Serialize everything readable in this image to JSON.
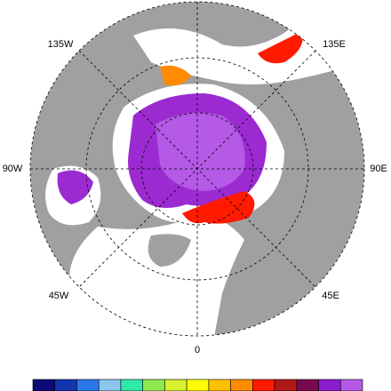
{
  "map": {
    "longitude_labels": [
      "135W",
      "135E",
      "90W",
      "90E",
      "45W",
      "45E",
      "0"
    ]
  },
  "colorbar": {
    "colors": [
      "#0a0a78",
      "#1236b0",
      "#2a78e6",
      "#8ac6f0",
      "#30e8a8",
      "#90e850",
      "#d8f030",
      "#ffff00",
      "#ffc000",
      "#ff8c00",
      "#ff1a00",
      "#b01818",
      "#780a50",
      "#8a1ccc",
      "#b45ae6"
    ]
  }
}
